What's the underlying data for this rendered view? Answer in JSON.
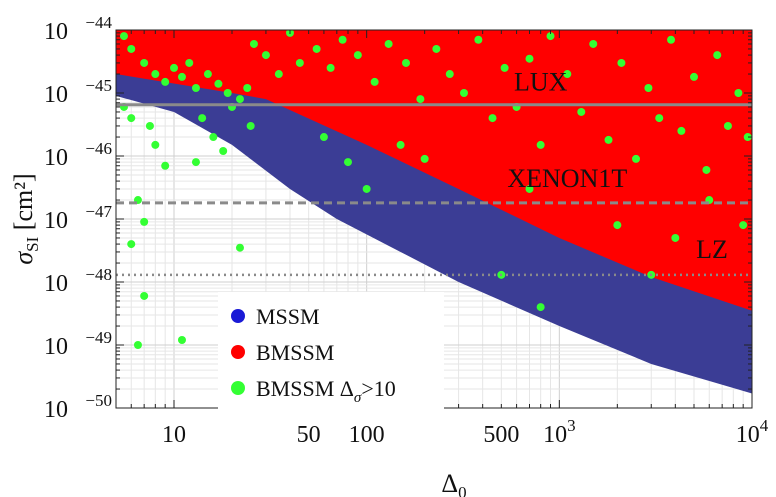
{
  "chart_data": {
    "type": "scatter",
    "title": "",
    "xlabel": "Δ",
    "xlabel_sub": "0",
    "ylabel": "σ",
    "ylabel_sub": "SI",
    "ylabel_unit": "[cm²]",
    "xscale": "log",
    "yscale": "log",
    "xlim": [
      5,
      10000
    ],
    "ylim": [
      1e-50,
      1e-44
    ],
    "x_ticks": [
      {
        "value": 10,
        "label": "10",
        "exp": ""
      },
      {
        "value": 50,
        "label": "50",
        "exp": ""
      },
      {
        "value": 100,
        "label": "100",
        "exp": ""
      },
      {
        "value": 500,
        "label": "500",
        "exp": ""
      },
      {
        "value": 1000,
        "label": "10",
        "exp": "3"
      },
      {
        "value": 10000,
        "label": "10",
        "exp": "4"
      }
    ],
    "y_ticks": [
      {
        "value": 1e-44,
        "label": "10",
        "exp": "−44"
      },
      {
        "value": 1e-45,
        "label": "10",
        "exp": "−45"
      },
      {
        "value": 1e-46,
        "label": "10",
        "exp": "−46"
      },
      {
        "value": 1e-47,
        "label": "10",
        "exp": "−47"
      },
      {
        "value": 1e-48,
        "label": "10",
        "exp": "−48"
      },
      {
        "value": 1e-49,
        "label": "10",
        "exp": "−49"
      },
      {
        "value": 1e-50,
        "label": "10",
        "exp": "−50"
      }
    ],
    "grid": true,
    "legend_position": "bottom-left",
    "series": [
      {
        "name": "MSSM",
        "color": "#3b3d95",
        "legend_color": "#1a1ad6",
        "region": {
          "upper_boundary": [
            [
              5,
              1e-44
            ],
            [
              10000,
              1e-44
            ]
          ],
          "lower_boundary": [
            [
              5,
              9e-46
            ],
            [
              10,
              5e-46
            ],
            [
              20,
              1.5e-46
            ],
            [
              40,
              3e-47
            ],
            [
              70,
              1e-47
            ],
            [
              150,
              3e-48
            ],
            [
              300,
              1e-48
            ],
            [
              1000,
              2e-49
            ],
            [
              3000,
              5e-50
            ],
            [
              10000,
              1.7e-50
            ]
          ]
        }
      },
      {
        "name": "BMSSM",
        "color": "#ff0000",
        "legend_color": "#ff0000",
        "region": {
          "upper_boundary": [
            [
              5,
              1e-44
            ],
            [
              10000,
              1e-44
            ]
          ],
          "lower_boundary": [
            [
              5,
              2e-45
            ],
            [
              20,
              1e-45
            ],
            [
              30,
              8e-46
            ],
            [
              100,
              1.5e-46
            ],
            [
              300,
              3e-47
            ],
            [
              1000,
              5e-48
            ],
            [
              3000,
              1.2e-48
            ],
            [
              10000,
              3.5e-49
            ]
          ]
        }
      },
      {
        "name": "BMSSM Δσ>10",
        "legend_label": "BMSSM Δ",
        "legend_sub": "σ",
        "legend_suffix": ">10",
        "color": "#33ff33",
        "points": [
          [
            5.5,
            6e-46
          ],
          [
            6,
            4e-46
          ],
          [
            6.5,
            2e-47
          ],
          [
            7,
            9e-48
          ],
          [
            7.5,
            3e-46
          ],
          [
            8,
            1.5e-46
          ],
          [
            9,
            7e-47
          ],
          [
            6,
            4e-48
          ],
          [
            7,
            6e-49
          ],
          [
            6.5,
            1e-49
          ],
          [
            11,
            1.2e-49
          ],
          [
            22,
            3.5e-48
          ],
          [
            13,
            8e-47
          ],
          [
            14,
            4e-46
          ],
          [
            16,
            2e-46
          ],
          [
            18,
            1.2e-46
          ],
          [
            20,
            6e-46
          ],
          [
            25,
            3e-46
          ],
          [
            60,
            2e-46
          ],
          [
            80,
            8e-47
          ],
          [
            100,
            3e-47
          ],
          [
            150,
            1.5e-46
          ],
          [
            200,
            9e-47
          ],
          [
            500,
            1.3e-48
          ],
          [
            800,
            4e-49
          ],
          [
            700,
            3e-47
          ],
          [
            2000,
            8e-48
          ],
          [
            3000,
            1.3e-48
          ],
          [
            4000,
            5e-48
          ],
          [
            6000,
            2e-47
          ],
          [
            9000,
            8e-48
          ],
          [
            5.5,
            8e-45
          ],
          [
            6,
            5e-45
          ],
          [
            7,
            3e-45
          ],
          [
            8,
            2e-45
          ],
          [
            9,
            1.5e-45
          ],
          [
            10,
            2.5e-45
          ],
          [
            11,
            1.8e-45
          ],
          [
            12,
            3e-45
          ],
          [
            13,
            1.2e-45
          ],
          [
            15,
            2e-45
          ],
          [
            17,
            1.4e-45
          ],
          [
            19,
            1e-45
          ],
          [
            22,
            8e-46
          ],
          [
            24,
            1.2e-45
          ],
          [
            26,
            6e-45
          ],
          [
            30,
            4e-45
          ],
          [
            35,
            2e-45
          ],
          [
            40,
            9e-45
          ],
          [
            45,
            3e-45
          ],
          [
            55,
            5e-45
          ],
          [
            65,
            2.5e-45
          ],
          [
            75,
            7e-45
          ],
          [
            90,
            4e-45
          ],
          [
            110,
            1.5e-45
          ],
          [
            130,
            6e-45
          ],
          [
            160,
            3e-45
          ],
          [
            190,
            8e-46
          ],
          [
            230,
            5e-45
          ],
          [
            270,
            2e-45
          ],
          [
            320,
            1e-45
          ],
          [
            380,
            7e-45
          ],
          [
            450,
            4e-46
          ],
          [
            520,
            2.5e-45
          ],
          [
            600,
            6e-46
          ],
          [
            700,
            3.5e-45
          ],
          [
            800,
            1.5e-46
          ],
          [
            900,
            8e-45
          ],
          [
            1100,
            2e-45
          ],
          [
            1300,
            5e-46
          ],
          [
            1500,
            6e-45
          ],
          [
            1800,
            1.8e-46
          ],
          [
            2100,
            3e-45
          ],
          [
            2500,
            9e-47
          ],
          [
            2900,
            1.2e-45
          ],
          [
            3300,
            4e-46
          ],
          [
            3800,
            7e-45
          ],
          [
            4300,
            2.5e-46
          ],
          [
            5000,
            1.8e-45
          ],
          [
            5800,
            6e-47
          ],
          [
            6600,
            4e-45
          ],
          [
            7500,
            3e-46
          ],
          [
            8500,
            1e-45
          ],
          [
            9500,
            2e-46
          ]
        ]
      }
    ],
    "limits": [
      {
        "name": "LUX",
        "value": 6.5e-46,
        "style": "solid",
        "color": "#8a8a8a",
        "label_x": 800,
        "label_y": 1.1e-45
      },
      {
        "name": "XENON1T",
        "value": 1.8e-47,
        "style": "dashed",
        "color": "#8a8a8a",
        "label_x": 1100,
        "label_y": 3.2e-47
      },
      {
        "name": "LZ",
        "value": 1.3e-48,
        "style": "dotted",
        "color": "#8a8a8a",
        "label_x": 6200,
        "label_y": 2.4e-48
      }
    ]
  }
}
